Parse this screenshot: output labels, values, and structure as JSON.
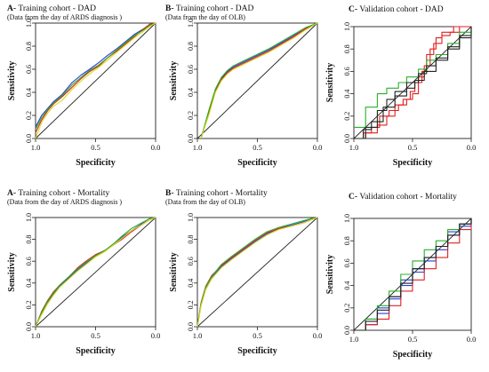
{
  "figure": {
    "axis_labels": {
      "x": "Specificity",
      "y": "Sensitivity"
    }
  },
  "chart_data": [
    {
      "type": "line",
      "title": "A- Training cohort - DAD",
      "subtitle": "(Data from the day of ARDS diagnosis )",
      "xlabel": "Specificity",
      "ylabel": "Sensitivity",
      "xlim": [
        1.0,
        0.0
      ],
      "ylim": [
        0.0,
        1.0
      ],
      "x_ticks": [
        "1.0",
        "0.5",
        "0.0"
      ],
      "y_ticks": [
        "0.0",
        "0.2",
        "0.4",
        "0.6",
        "0.8",
        "1.0"
      ],
      "reference_line": true,
      "series": [
        {
          "color": "#2b3fd6",
          "x": [
            1.0,
            0.95,
            0.9,
            0.85,
            0.78,
            0.7,
            0.62,
            0.55,
            0.47,
            0.4,
            0.32,
            0.25,
            0.18,
            0.1,
            0.05,
            0.0
          ],
          "y": [
            0.1,
            0.2,
            0.26,
            0.32,
            0.38,
            0.48,
            0.55,
            0.6,
            0.66,
            0.72,
            0.78,
            0.84,
            0.9,
            0.95,
            0.98,
            1.0
          ]
        },
        {
          "color": "#e02020",
          "x": [
            1.0,
            0.95,
            0.9,
            0.85,
            0.78,
            0.7,
            0.62,
            0.55,
            0.47,
            0.4,
            0.32,
            0.25,
            0.18,
            0.1,
            0.05,
            0.0
          ],
          "y": [
            0.05,
            0.16,
            0.24,
            0.3,
            0.36,
            0.44,
            0.52,
            0.58,
            0.63,
            0.7,
            0.76,
            0.82,
            0.88,
            0.95,
            0.99,
            1.0
          ]
        },
        {
          "color": "#28b028",
          "x": [
            1.0,
            0.95,
            0.9,
            0.85,
            0.78,
            0.7,
            0.62,
            0.55,
            0.47,
            0.4,
            0.32,
            0.25,
            0.18,
            0.1,
            0.05,
            0.0
          ],
          "y": [
            0.08,
            0.18,
            0.25,
            0.31,
            0.37,
            0.46,
            0.53,
            0.59,
            0.64,
            0.7,
            0.77,
            0.83,
            0.89,
            0.94,
            0.98,
            1.0
          ]
        },
        {
          "color": "#d8d820",
          "x": [
            1.0,
            0.95,
            0.9,
            0.85,
            0.78,
            0.7,
            0.62,
            0.55,
            0.47,
            0.4,
            0.32,
            0.25,
            0.18,
            0.1,
            0.05,
            0.0
          ],
          "y": [
            0.0,
            0.14,
            0.22,
            0.28,
            0.33,
            0.42,
            0.5,
            0.56,
            0.62,
            0.68,
            0.75,
            0.81,
            0.87,
            0.93,
            0.97,
            1.0
          ]
        }
      ]
    },
    {
      "type": "line",
      "title": "B- Training cohort - DAD",
      "subtitle": "(Data from the day of OLB)",
      "xlabel": "Specificity",
      "ylabel": "Sensitivity",
      "xlim": [
        1.0,
        0.0
      ],
      "ylim": [
        0.0,
        1.0
      ],
      "x_ticks": [
        "1.0",
        "0.5",
        "0.0"
      ],
      "y_ticks": [
        "0.0",
        "0.2",
        "0.4",
        "0.6",
        "0.8",
        "1.0"
      ],
      "reference_line": true,
      "series": [
        {
          "color": "#2b3fd6",
          "x": [
            0.97,
            0.9,
            0.85,
            0.8,
            0.75,
            0.7,
            0.6,
            0.5,
            0.4,
            0.3,
            0.2,
            0.1,
            0.0
          ],
          "y": [
            0.0,
            0.25,
            0.42,
            0.52,
            0.58,
            0.62,
            0.67,
            0.72,
            0.77,
            0.83,
            0.89,
            0.95,
            1.0
          ]
        },
        {
          "color": "#e02020",
          "x": [
            0.97,
            0.9,
            0.85,
            0.8,
            0.75,
            0.7,
            0.6,
            0.5,
            0.4,
            0.3,
            0.2,
            0.1,
            0.0
          ],
          "y": [
            0.0,
            0.24,
            0.41,
            0.51,
            0.57,
            0.61,
            0.66,
            0.71,
            0.76,
            0.82,
            0.88,
            0.95,
            1.0
          ]
        },
        {
          "color": "#28b028",
          "x": [
            0.97,
            0.9,
            0.85,
            0.8,
            0.75,
            0.7,
            0.6,
            0.5,
            0.4,
            0.3,
            0.2,
            0.1,
            0.0
          ],
          "y": [
            0.0,
            0.26,
            0.43,
            0.53,
            0.59,
            0.63,
            0.68,
            0.73,
            0.78,
            0.84,
            0.9,
            0.96,
            1.0
          ]
        },
        {
          "color": "#d8d820",
          "x": [
            0.97,
            0.9,
            0.85,
            0.8,
            0.75,
            0.7,
            0.6,
            0.5,
            0.4,
            0.3,
            0.2,
            0.1,
            0.0
          ],
          "y": [
            0.0,
            0.22,
            0.4,
            0.5,
            0.56,
            0.6,
            0.65,
            0.7,
            0.75,
            0.81,
            0.87,
            0.94,
            1.0
          ]
        }
      ]
    },
    {
      "type": "line",
      "title": "C- Validation cohort - DAD",
      "subtitle": "",
      "xlabel": "Specificity",
      "ylabel": "Sensitivity",
      "xlim": [
        1.0,
        0.0
      ],
      "ylim": [
        0.0,
        1.0
      ],
      "x_ticks": [
        "1.0",
        "0.5",
        "0.0"
      ],
      "y_ticks": [
        "0.0",
        "0.2",
        "0.4",
        "0.6",
        "0.8",
        "1.0"
      ],
      "reference_line": true,
      "step": true,
      "series": [
        {
          "color": "#e02020",
          "x": [
            1.0,
            0.92,
            0.85,
            0.78,
            0.7,
            0.62,
            0.55,
            0.5,
            0.45,
            0.4,
            0.35,
            0.3,
            0.25,
            0.15,
            0.1,
            0.0
          ],
          "y": [
            0.0,
            0.05,
            0.1,
            0.2,
            0.25,
            0.3,
            0.35,
            0.4,
            0.55,
            0.65,
            0.8,
            0.9,
            0.95,
            1.0,
            1.0,
            1.0
          ]
        },
        {
          "color": "#e02020",
          "x": [
            1.0,
            0.9,
            0.8,
            0.72,
            0.65,
            0.58,
            0.52,
            0.48,
            0.42,
            0.38,
            0.32,
            0.25,
            0.18,
            0.1,
            0.0
          ],
          "y": [
            0.0,
            0.05,
            0.12,
            0.2,
            0.3,
            0.35,
            0.42,
            0.5,
            0.6,
            0.75,
            0.85,
            0.92,
            0.95,
            1.0,
            1.0
          ]
        },
        {
          "color": "#28b028",
          "x": [
            1.0,
            0.9,
            0.8,
            0.72,
            0.62,
            0.55,
            0.45,
            0.38,
            0.3,
            0.2,
            0.1,
            0.0
          ],
          "y": [
            0.1,
            0.28,
            0.4,
            0.45,
            0.5,
            0.55,
            0.62,
            0.7,
            0.75,
            0.85,
            0.95,
            1.0
          ]
        },
        {
          "color": "#222222",
          "x": [
            1.0,
            0.9,
            0.8,
            0.72,
            0.65,
            0.55,
            0.45,
            0.38,
            0.3,
            0.2,
            0.1,
            0.0
          ],
          "y": [
            0.0,
            0.1,
            0.25,
            0.35,
            0.42,
            0.5,
            0.58,
            0.65,
            0.72,
            0.82,
            0.92,
            1.0
          ]
        },
        {
          "color": "#222222",
          "x": [
            1.0,
            0.92,
            0.85,
            0.75,
            0.65,
            0.55,
            0.48,
            0.4,
            0.3,
            0.2,
            0.1,
            0.0
          ],
          "y": [
            0.0,
            0.08,
            0.15,
            0.28,
            0.38,
            0.45,
            0.52,
            0.6,
            0.7,
            0.8,
            0.9,
            1.0
          ]
        }
      ]
    },
    {
      "type": "line",
      "title": "A- Training cohort - Mortality",
      "subtitle": "(Data from the day of ARDS diagnosis )",
      "xlabel": "Specificity",
      "ylabel": "Sensitivity",
      "xlim": [
        1.0,
        0.0
      ],
      "ylim": [
        0.0,
        1.0
      ],
      "x_ticks": [
        "1.0",
        "0.5",
        "0.0"
      ],
      "y_ticks": [
        "0.0",
        "0.2",
        "0.4",
        "0.6",
        "0.8",
        "1.0"
      ],
      "reference_line": true,
      "series": [
        {
          "color": "#2b3fd6",
          "x": [
            1.0,
            0.95,
            0.9,
            0.85,
            0.8,
            0.72,
            0.65,
            0.58,
            0.5,
            0.42,
            0.35,
            0.28,
            0.2,
            0.12,
            0.05,
            0.0
          ],
          "y": [
            0.0,
            0.12,
            0.22,
            0.3,
            0.37,
            0.45,
            0.52,
            0.58,
            0.65,
            0.7,
            0.76,
            0.82,
            0.88,
            0.94,
            0.98,
            1.0
          ]
        },
        {
          "color": "#e02020",
          "x": [
            1.0,
            0.95,
            0.9,
            0.85,
            0.8,
            0.72,
            0.65,
            0.58,
            0.5,
            0.42,
            0.35,
            0.28,
            0.2,
            0.12,
            0.05,
            0.0
          ],
          "y": [
            0.0,
            0.14,
            0.24,
            0.32,
            0.38,
            0.46,
            0.54,
            0.6,
            0.66,
            0.7,
            0.75,
            0.8,
            0.87,
            0.93,
            0.98,
            1.0
          ]
        },
        {
          "color": "#28b028",
          "x": [
            1.0,
            0.95,
            0.9,
            0.85,
            0.8,
            0.72,
            0.65,
            0.58,
            0.5,
            0.42,
            0.35,
            0.28,
            0.2,
            0.12,
            0.05,
            0.0
          ],
          "y": [
            0.0,
            0.13,
            0.23,
            0.31,
            0.38,
            0.46,
            0.53,
            0.59,
            0.65,
            0.7,
            0.76,
            0.83,
            0.9,
            0.95,
            0.99,
            1.0
          ]
        },
        {
          "color": "#d8d820",
          "x": [
            1.0,
            0.95,
            0.9,
            0.85,
            0.8,
            0.72,
            0.65,
            0.58,
            0.5,
            0.42,
            0.35,
            0.28,
            0.2,
            0.12,
            0.05,
            0.0
          ],
          "y": [
            0.0,
            0.11,
            0.21,
            0.29,
            0.36,
            0.44,
            0.51,
            0.57,
            0.64,
            0.69,
            0.75,
            0.81,
            0.88,
            0.93,
            0.98,
            1.0
          ]
        }
      ]
    },
    {
      "type": "line",
      "title": "B- Training cohort - Mortality",
      "subtitle": "(Data from the day of OLB)",
      "xlabel": "Specificity",
      "ylabel": "Sensitivity",
      "xlim": [
        1.0,
        0.0
      ],
      "ylim": [
        0.0,
        1.0
      ],
      "x_ticks": [
        "1.0",
        "0.5",
        "0.0"
      ],
      "y_ticks": [
        "0.0",
        "0.2",
        "0.4",
        "0.6",
        "0.8",
        "1.0"
      ],
      "reference_line": true,
      "series": [
        {
          "color": "#2b3fd6",
          "x": [
            1.0,
            0.97,
            0.93,
            0.88,
            0.8,
            0.72,
            0.62,
            0.52,
            0.42,
            0.32,
            0.22,
            0.12,
            0.05,
            0.0
          ],
          "y": [
            0.0,
            0.2,
            0.35,
            0.45,
            0.55,
            0.62,
            0.7,
            0.78,
            0.85,
            0.9,
            0.93,
            0.96,
            0.99,
            1.0
          ]
        },
        {
          "color": "#e02020",
          "x": [
            1.0,
            0.97,
            0.93,
            0.88,
            0.8,
            0.72,
            0.62,
            0.52,
            0.42,
            0.32,
            0.22,
            0.12,
            0.05,
            0.0
          ],
          "y": [
            0.0,
            0.22,
            0.37,
            0.47,
            0.56,
            0.63,
            0.71,
            0.79,
            0.86,
            0.9,
            0.92,
            0.95,
            0.98,
            1.0
          ]
        },
        {
          "color": "#28b028",
          "x": [
            1.0,
            0.97,
            0.93,
            0.88,
            0.8,
            0.72,
            0.62,
            0.52,
            0.42,
            0.32,
            0.22,
            0.12,
            0.05,
            0.0
          ],
          "y": [
            0.0,
            0.21,
            0.36,
            0.46,
            0.57,
            0.64,
            0.72,
            0.8,
            0.87,
            0.91,
            0.94,
            0.97,
            0.99,
            1.0
          ]
        },
        {
          "color": "#d8d820",
          "x": [
            1.0,
            0.97,
            0.93,
            0.88,
            0.8,
            0.72,
            0.62,
            0.52,
            0.42,
            0.32,
            0.22,
            0.12,
            0.05,
            0.0
          ],
          "y": [
            0.0,
            0.19,
            0.34,
            0.44,
            0.54,
            0.61,
            0.69,
            0.77,
            0.84,
            0.89,
            0.92,
            0.95,
            0.98,
            1.0
          ]
        }
      ]
    },
    {
      "type": "line",
      "title": "C- Validation cohort - Mortality",
      "subtitle": "",
      "xlabel": "Specificity",
      "ylabel": "Sensitivity",
      "xlim": [
        1.0,
        0.0
      ],
      "ylim": [
        0.0,
        1.0
      ],
      "x_ticks": [
        "1.0",
        "0.5",
        "0.0"
      ],
      "y_ticks": [
        "0.0",
        "0.2",
        "0.4",
        "0.6",
        "0.8",
        "1.0"
      ],
      "reference_line": true,
      "step": true,
      "series": [
        {
          "color": "#2b3fd6",
          "x": [
            1.0,
            0.9,
            0.8,
            0.7,
            0.6,
            0.5,
            0.4,
            0.3,
            0.2,
            0.1,
            0.0
          ],
          "y": [
            0.0,
            0.1,
            0.2,
            0.3,
            0.45,
            0.55,
            0.65,
            0.75,
            0.88,
            0.95,
            1.0
          ]
        },
        {
          "color": "#2b3fd6",
          "x": [
            1.0,
            0.9,
            0.8,
            0.7,
            0.6,
            0.5,
            0.4,
            0.3,
            0.2,
            0.1,
            0.0
          ],
          "y": [
            0.0,
            0.05,
            0.15,
            0.28,
            0.4,
            0.52,
            0.62,
            0.72,
            0.85,
            0.93,
            1.0
          ]
        },
        {
          "color": "#e02020",
          "x": [
            1.0,
            0.9,
            0.8,
            0.7,
            0.6,
            0.5,
            0.4,
            0.3,
            0.2,
            0.1,
            0.0
          ],
          "y": [
            0.0,
            0.05,
            0.1,
            0.22,
            0.35,
            0.45,
            0.55,
            0.65,
            0.78,
            0.9,
            1.0
          ]
        },
        {
          "color": "#28b028",
          "x": [
            1.0,
            0.9,
            0.8,
            0.7,
            0.6,
            0.5,
            0.4,
            0.3,
            0.2,
            0.1,
            0.0
          ],
          "y": [
            0.0,
            0.1,
            0.22,
            0.35,
            0.5,
            0.62,
            0.72,
            0.8,
            0.9,
            0.95,
            1.0
          ]
        },
        {
          "color": "#222222",
          "x": [
            1.0,
            0.9,
            0.8,
            0.7,
            0.6,
            0.5,
            0.4,
            0.3,
            0.2,
            0.1,
            0.0
          ],
          "y": [
            0.0,
            0.08,
            0.18,
            0.3,
            0.42,
            0.55,
            0.65,
            0.75,
            0.85,
            0.95,
            1.0
          ]
        }
      ]
    }
  ]
}
